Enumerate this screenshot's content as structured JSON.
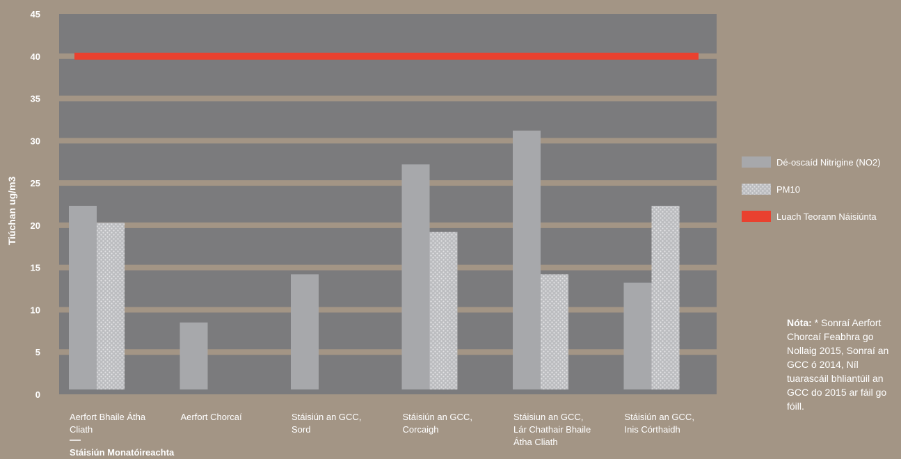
{
  "colors": {
    "background": "#a39585",
    "plot_background": "#7b7b7d",
    "band": "#a39585",
    "no2": "#a7a8ab",
    "pm10_base": "#bcbdc0",
    "pm10_dot": "#e3e3e5",
    "limit": "#e9412f",
    "text": "#ffffff"
  },
  "chart_data": {
    "type": "bar",
    "ylabel": "Tiúchan ug/m3",
    "xlabel": "Stáisiún Monatóireachta",
    "ylim": [
      0,
      45
    ],
    "yticks": [
      0,
      5,
      10,
      15,
      20,
      25,
      30,
      35,
      40,
      45
    ],
    "grid": true,
    "legend_position": "right",
    "categories": [
      [
        "Aerfort Bhaile Átha",
        "Cliath"
      ],
      [
        "Aerfort Chorcaí"
      ],
      [
        "Stáisiún an GCC,",
        "Sord"
      ],
      [
        "Stáisiún an GCC,",
        "Corcaigh"
      ],
      [
        "Stáisiun an GCC,",
        "Lár Chathair Bhaile",
        "Átha Cliath"
      ],
      [
        "Stáisiún an GCC,",
        "Inis Córthaidh"
      ]
    ],
    "series": [
      {
        "name": "Dé-oscaíd Nitrigine (NO2)",
        "values": [
          22.3,
          8.5,
          14.2,
          27.2,
          31.2,
          13.2
        ]
      },
      {
        "name": "PM10",
        "values": [
          20.3,
          null,
          null,
          19.2,
          14.2,
          22.3
        ]
      }
    ],
    "reference_line": {
      "name": "Luach Teorann Náisiúnta",
      "value": 40
    }
  },
  "note": {
    "label": "Nóta:",
    "text": "* Sonraí Aerfort Chorcaí Feabhra go Nollaig 2015, Sonraí an GCC ó 2014, Níl tuarascáil bhliantúil an GCC do 2015 ar fáil go fóill."
  }
}
